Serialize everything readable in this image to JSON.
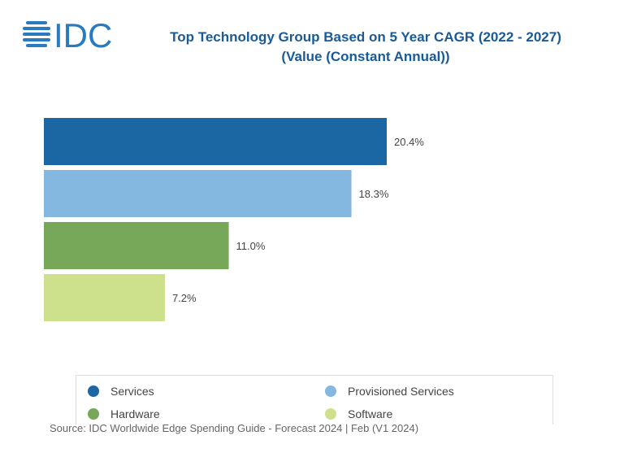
{
  "logo": "IDC",
  "chart_data": {
    "type": "bar",
    "orientation": "horizontal",
    "title": "Top Technology Group Based on 5 Year CAGR (2022 - 2027)",
    "subtitle": "(Value (Constant Annual))",
    "categories": [
      "Services",
      "Provisioned Services",
      "Hardware",
      "Software"
    ],
    "values": [
      20.4,
      18.3,
      11.0,
      7.2
    ],
    "labels": [
      "20.4%",
      "18.3%",
      "11.0%",
      "7.2%"
    ],
    "colors": [
      "#1a67a3",
      "#85b8e0",
      "#77a85a",
      "#cde08c"
    ],
    "xlim": [
      0,
      20.4
    ],
    "grid": false,
    "legend": "bottom"
  },
  "source": "Source: IDC Worldwide Edge Spending Guide - Forecast 2024 | Feb (V1 2024)"
}
